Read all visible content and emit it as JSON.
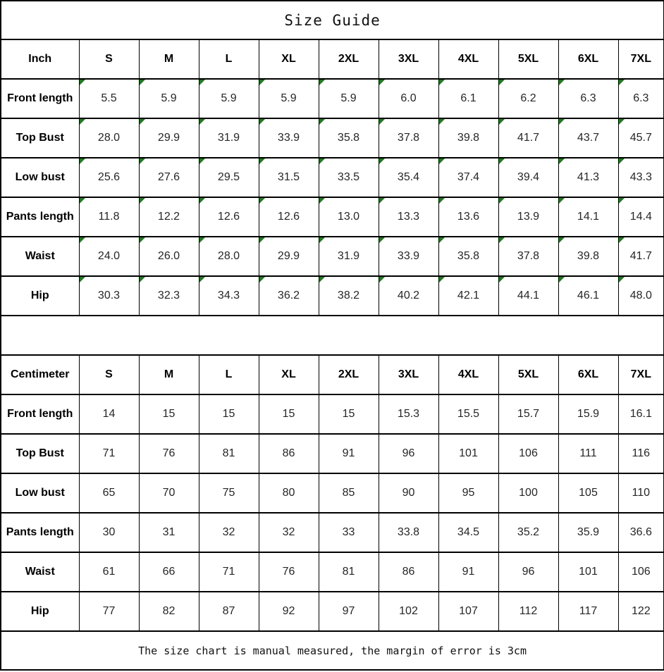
{
  "title": "Size Guide",
  "note": "The size chart is manual measured, the margin of error is 3cm",
  "colors": {
    "flag_green": "#1E7B1E",
    "border": "#000000",
    "value_text": "#262626",
    "label_text": "#000000",
    "background": "#ffffff"
  },
  "icons": {
    "cell_flag": "green-corner-flag"
  },
  "chart_data": [
    {
      "type": "table",
      "title": "Size Guide",
      "unit": "Inch",
      "flagged_cells": true,
      "columns": [
        "Inch",
        "S",
        "M",
        "L",
        "XL",
        "2XL",
        "3XL",
        "4XL",
        "5XL",
        "6XL",
        "7XL"
      ],
      "rows": [
        [
          "Front length",
          "5.5",
          "5.9",
          "5.9",
          "5.9",
          "5.9",
          "6.0",
          "6.1",
          "6.2",
          "6.3",
          "6.3"
        ],
        [
          "Top Bust",
          "28.0",
          "29.9",
          "31.9",
          "33.9",
          "35.8",
          "37.8",
          "39.8",
          "41.7",
          "43.7",
          "45.7"
        ],
        [
          "Low bust",
          "25.6",
          "27.6",
          "29.5",
          "31.5",
          "33.5",
          "35.4",
          "37.4",
          "39.4",
          "41.3",
          "43.3"
        ],
        [
          "Pants length",
          "11.8",
          "12.2",
          "12.6",
          "12.6",
          "13.0",
          "13.3",
          "13.6",
          "13.9",
          "14.1",
          "14.4"
        ],
        [
          "Waist",
          "24.0",
          "26.0",
          "28.0",
          "29.9",
          "31.9",
          "33.9",
          "35.8",
          "37.8",
          "39.8",
          "41.7"
        ],
        [
          "Hip",
          "30.3",
          "32.3",
          "34.3",
          "36.2",
          "38.2",
          "40.2",
          "42.1",
          "44.1",
          "46.1",
          "48.0"
        ]
      ]
    },
    {
      "type": "table",
      "title": "Size Guide",
      "unit": "Centimeter",
      "flagged_cells": false,
      "columns": [
        "Centimeter",
        "S",
        "M",
        "L",
        "XL",
        "2XL",
        "3XL",
        "4XL",
        "5XL",
        "6XL",
        "7XL"
      ],
      "rows": [
        [
          "Front length",
          "14",
          "15",
          "15",
          "15",
          "15",
          "15.3",
          "15.5",
          "15.7",
          "15.9",
          "16.1"
        ],
        [
          "Top Bust",
          "71",
          "76",
          "81",
          "86",
          "91",
          "96",
          "101",
          "106",
          "111",
          "116"
        ],
        [
          "Low bust",
          "65",
          "70",
          "75",
          "80",
          "85",
          "90",
          "95",
          "100",
          "105",
          "110"
        ],
        [
          "Pants length",
          "30",
          "31",
          "32",
          "32",
          "33",
          "33.8",
          "34.5",
          "35.2",
          "35.9",
          "36.6"
        ],
        [
          "Waist",
          "61",
          "66",
          "71",
          "76",
          "81",
          "86",
          "91",
          "96",
          "101",
          "106"
        ],
        [
          "Hip",
          "77",
          "82",
          "87",
          "92",
          "97",
          "102",
          "107",
          "112",
          "117",
          "122"
        ]
      ]
    }
  ]
}
